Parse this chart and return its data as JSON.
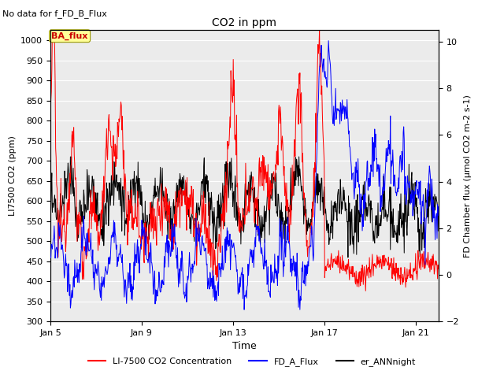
{
  "title": "CO2 in ppm",
  "subtitle": "No data for f_FD_B_Flux",
  "ylabel_left": "LI7500 CO2 (ppm)",
  "ylabel_right": "FD Chamber flux (μmol CO2 m-2 s-1)",
  "xlabel": "Time",
  "ylim_left": [
    300,
    1025
  ],
  "ylim_right": [
    -2,
    10.5
  ],
  "yticks_left": [
    300,
    350,
    400,
    450,
    500,
    550,
    600,
    650,
    700,
    750,
    800,
    850,
    900,
    950,
    1000
  ],
  "yticks_right": [
    -2,
    0,
    2,
    4,
    6,
    8,
    10
  ],
  "xlim": [
    5,
    22
  ],
  "xtick_labels": [
    "Jan 5",
    "Jan 9",
    "Jan 13",
    "Jan 17",
    "Jan 21"
  ],
  "xtick_positions": [
    5,
    9,
    13,
    17,
    21
  ],
  "ba_flux_box_color": "#FFFF99",
  "ba_flux_text_color": "#CC0000",
  "legend_entries": [
    "LI-7500 CO2 Concentration",
    "FD_A_Flux",
    "er_ANNnight"
  ],
  "legend_colors": [
    "#FF0000",
    "#0000FF",
    "#000000"
  ],
  "line_colors": {
    "co2": "#FF0000",
    "fd_a": "#0000FF",
    "ann": "#000000"
  },
  "background_color": "#FFFFFF",
  "plot_bg_color": "#EBEBEB",
  "grid_color": "#FFFFFF"
}
